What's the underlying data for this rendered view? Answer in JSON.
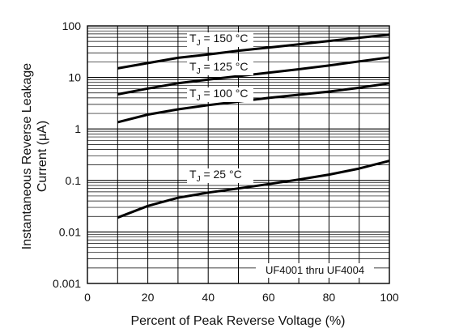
{
  "chart_data": {
    "type": "line",
    "title": "",
    "xlabel": "Percent of Peak Reverse Voltage (%)",
    "ylabel": [
      "Instantaneous Reverse Leakage",
      "Current (μA)"
    ],
    "xlim": [
      0,
      100
    ],
    "ylim": [
      0.001,
      100
    ],
    "yscale": "log",
    "grid": true,
    "x_ticks": [
      0,
      20,
      40,
      60,
      80,
      100
    ],
    "x_tick_labels": [
      "0",
      "20",
      "40",
      "60",
      "80",
      "100"
    ],
    "y_ticks": [
      0.001,
      0.01,
      0.1,
      1,
      10,
      100
    ],
    "y_tick_labels": [
      "0.001",
      "0.01",
      "0.1",
      "1",
      "10",
      "100"
    ],
    "note": "UF4001 thru UF4004",
    "series": [
      {
        "name": "T_J = 150 °C",
        "label_main": "T",
        "label_sub": "J",
        "label_rest": " = 150 °C",
        "x": [
          10,
          20,
          30,
          40,
          50,
          60,
          70,
          80,
          90,
          100
        ],
        "values": [
          15,
          19,
          24,
          28,
          33,
          38,
          44,
          51,
          59,
          68
        ]
      },
      {
        "name": "T_J = 125 °C",
        "label_main": "T",
        "label_sub": "J",
        "label_rest": " = 125 °C",
        "x": [
          10,
          20,
          30,
          40,
          50,
          60,
          70,
          80,
          90,
          100
        ],
        "values": [
          4.7,
          6.1,
          7.7,
          9.1,
          10.6,
          12.4,
          14.4,
          17,
          20.5,
          24.5
        ]
      },
      {
        "name": "T_J = 100 °C",
        "label_main": "T",
        "label_sub": "J",
        "label_rest": " = 100 °C",
        "x": [
          10,
          20,
          30,
          40,
          50,
          60,
          70,
          80,
          90,
          100
        ],
        "values": [
          1.35,
          1.9,
          2.4,
          2.9,
          3.4,
          4.0,
          4.6,
          5.3,
          6.3,
          7.7
        ]
      },
      {
        "name": "T_J = 25 °C",
        "label_main": "T",
        "label_sub": "J",
        "label_rest": " = 25 °C",
        "x": [
          10,
          20,
          30,
          40,
          50,
          60,
          70,
          80,
          90,
          100
        ],
        "values": [
          0.019,
          0.032,
          0.046,
          0.058,
          0.07,
          0.085,
          0.104,
          0.13,
          0.17,
          0.24
        ]
      }
    ]
  }
}
